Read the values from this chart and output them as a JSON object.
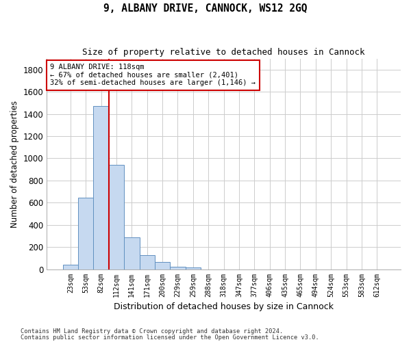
{
  "title": "9, ALBANY DRIVE, CANNOCK, WS12 2GQ",
  "subtitle": "Size of property relative to detached houses in Cannock",
  "xlabel": "Distribution of detached houses by size in Cannock",
  "ylabel": "Number of detached properties",
  "categories": [
    "23sqm",
    "53sqm",
    "82sqm",
    "112sqm",
    "141sqm",
    "171sqm",
    "200sqm",
    "229sqm",
    "259sqm",
    "288sqm",
    "318sqm",
    "347sqm",
    "377sqm",
    "406sqm",
    "435sqm",
    "465sqm",
    "494sqm",
    "524sqm",
    "553sqm",
    "583sqm",
    "612sqm"
  ],
  "bar_values": [
    40,
    648,
    1474,
    940,
    285,
    125,
    63,
    22,
    13,
    0,
    0,
    0,
    0,
    0,
    0,
    0,
    0,
    0,
    0,
    0,
    0
  ],
  "bar_color": "#c6d9f0",
  "bar_edge_color": "#6090c0",
  "vline_color": "#cc0000",
  "annotation_line1": "9 ALBANY DRIVE: 118sqm",
  "annotation_line2": "← 67% of detached houses are smaller (2,401)",
  "annotation_line3": "32% of semi-detached houses are larger (1,146) →",
  "annotation_box_color": "#ffffff",
  "annotation_box_edge_color": "#cc0000",
  "ylim": [
    0,
    1900
  ],
  "yticks": [
    0,
    200,
    400,
    600,
    800,
    1000,
    1200,
    1400,
    1600,
    1800
  ],
  "bg_color": "#ffffff",
  "grid_color": "#cccccc",
  "footer_line1": "Contains HM Land Registry data © Crown copyright and database right 2024.",
  "footer_line2": "Contains public sector information licensed under the Open Government Licence v3.0."
}
